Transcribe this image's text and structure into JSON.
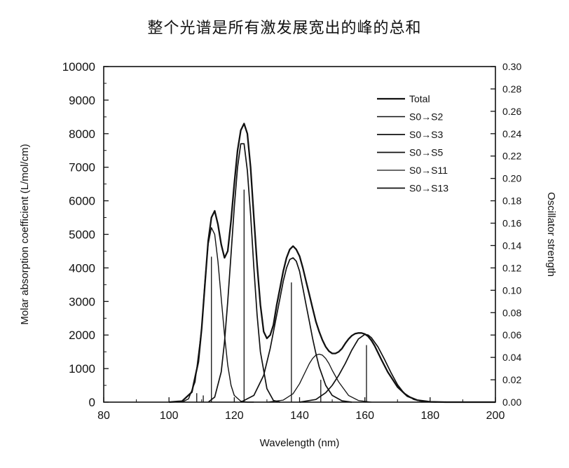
{
  "chart_data": {
    "type": "line",
    "title": "整个光谱是所有激发展宽出的峰的总和",
    "xlabel": "Wavelength (nm)",
    "ylabel": "Molar absorption coefficient (L/mol/cm)",
    "y2label": "Oscillator strength",
    "xlim": [
      80,
      200
    ],
    "ylim": [
      0,
      10000
    ],
    "y2lim": [
      0,
      0.3
    ],
    "xticks": [
      "80",
      "100",
      "120",
      "140",
      "160",
      "180",
      "200"
    ],
    "yticks": [
      "0",
      "1000",
      "2000",
      "3000",
      "4000",
      "5000",
      "6000",
      "7000",
      "8000",
      "9000",
      "10000"
    ],
    "y2ticks": [
      "0.00",
      "0.02",
      "0.04",
      "0.06",
      "0.08",
      "0.10",
      "0.12",
      "0.14",
      "0.16",
      "0.18",
      "0.20",
      "0.22",
      "0.24",
      "0.26",
      "0.28",
      "0.30"
    ],
    "legend_position": "top-right",
    "grid": false,
    "line_color": "#111111",
    "series": [
      {
        "name": "Total",
        "x": [
          100,
          104,
          107,
          109,
          110,
          111,
          112,
          113,
          114,
          115,
          116,
          117,
          118,
          119,
          120,
          121,
          122,
          123,
          124,
          125,
          126,
          127,
          128,
          129,
          130,
          131,
          132,
          133,
          134,
          135,
          136,
          137,
          138,
          139,
          140,
          141,
          142,
          143,
          144,
          145,
          146,
          147,
          148,
          149,
          150,
          151,
          152,
          153,
          154,
          155,
          156,
          157,
          158,
          159,
          160,
          161,
          162,
          163,
          164,
          165,
          167,
          170,
          173,
          176,
          180,
          185,
          190,
          200
        ],
        "y": [
          0,
          30,
          300,
          1200,
          2200,
          3500,
          4800,
          5500,
          5700,
          5300,
          4700,
          4300,
          4500,
          5400,
          6500,
          7500,
          8100,
          8300,
          8000,
          7000,
          5500,
          4100,
          2900,
          2100,
          1900,
          2000,
          2300,
          2900,
          3400,
          3900,
          4300,
          4550,
          4650,
          4550,
          4350,
          4000,
          3600,
          3200,
          2800,
          2400,
          2100,
          1850,
          1650,
          1520,
          1450,
          1450,
          1500,
          1600,
          1750,
          1880,
          1980,
          2040,
          2060,
          2060,
          2030,
          1960,
          1840,
          1680,
          1480,
          1280,
          900,
          450,
          180,
          60,
          10,
          0,
          0,
          0
        ]
      },
      {
        "name": "S0→S2",
        "x": [
          104,
          106,
          108,
          110,
          111,
          112,
          113,
          114,
          115,
          116,
          117,
          118,
          119,
          120,
          122,
          124,
          126
        ],
        "y": [
          0,
          100,
          600,
          2200,
          3600,
          4700,
          5200,
          5000,
          4200,
          3100,
          2000,
          1100,
          500,
          200,
          30,
          0,
          0
        ]
      },
      {
        "name": "S0→S3",
        "x": [
          112,
          114,
          116,
          117,
          118,
          119,
          120,
          121,
          122,
          123,
          124,
          125,
          126,
          127,
          128,
          130,
          132,
          134
        ],
        "y": [
          0,
          150,
          900,
          1800,
          3000,
          4400,
          5800,
          7000,
          7700,
          7700,
          6900,
          5600,
          4000,
          2600,
          1500,
          400,
          50,
          0
        ]
      },
      {
        "name": "S0→S5",
        "x": [
          122,
          126,
          129,
          131,
          133,
          134,
          135,
          136,
          137,
          138,
          139,
          140,
          141,
          142,
          143,
          144,
          145,
          146,
          148,
          150,
          153,
          156
        ],
        "y": [
          0,
          200,
          800,
          1600,
          2600,
          3100,
          3600,
          4000,
          4250,
          4300,
          4200,
          3900,
          3400,
          2900,
          2400,
          1900,
          1450,
          1050,
          500,
          200,
          40,
          0
        ]
      },
      {
        "name": "S0→S11",
        "x": [
          130,
          135,
          138,
          140,
          142,
          143,
          144,
          145,
          146,
          147,
          148,
          149,
          150,
          152,
          155,
          158,
          162
        ],
        "y": [
          0,
          60,
          250,
          550,
          950,
          1150,
          1300,
          1400,
          1430,
          1400,
          1300,
          1150,
          950,
          600,
          200,
          50,
          0
        ]
      },
      {
        "name": "S0→S13",
        "x": [
          140,
          145,
          148,
          150,
          152,
          154,
          156,
          158,
          160,
          161,
          162,
          164,
          166,
          168,
          170,
          172,
          175,
          178,
          182
        ],
        "y": [
          0,
          80,
          280,
          500,
          800,
          1150,
          1550,
          1880,
          2020,
          2000,
          1920,
          1650,
          1280,
          880,
          520,
          270,
          80,
          15,
          0
        ]
      }
    ],
    "sticks": [
      {
        "x": 108.5,
        "f": 0.008
      },
      {
        "x": 110.5,
        "f": 0.006
      },
      {
        "x": 113,
        "f": 0.13
      },
      {
        "x": 123,
        "f": 0.19
      },
      {
        "x": 137.5,
        "f": 0.107
      },
      {
        "x": 146.5,
        "f": 0.02
      },
      {
        "x": 160.5,
        "f": 0.051
      }
    ]
  }
}
